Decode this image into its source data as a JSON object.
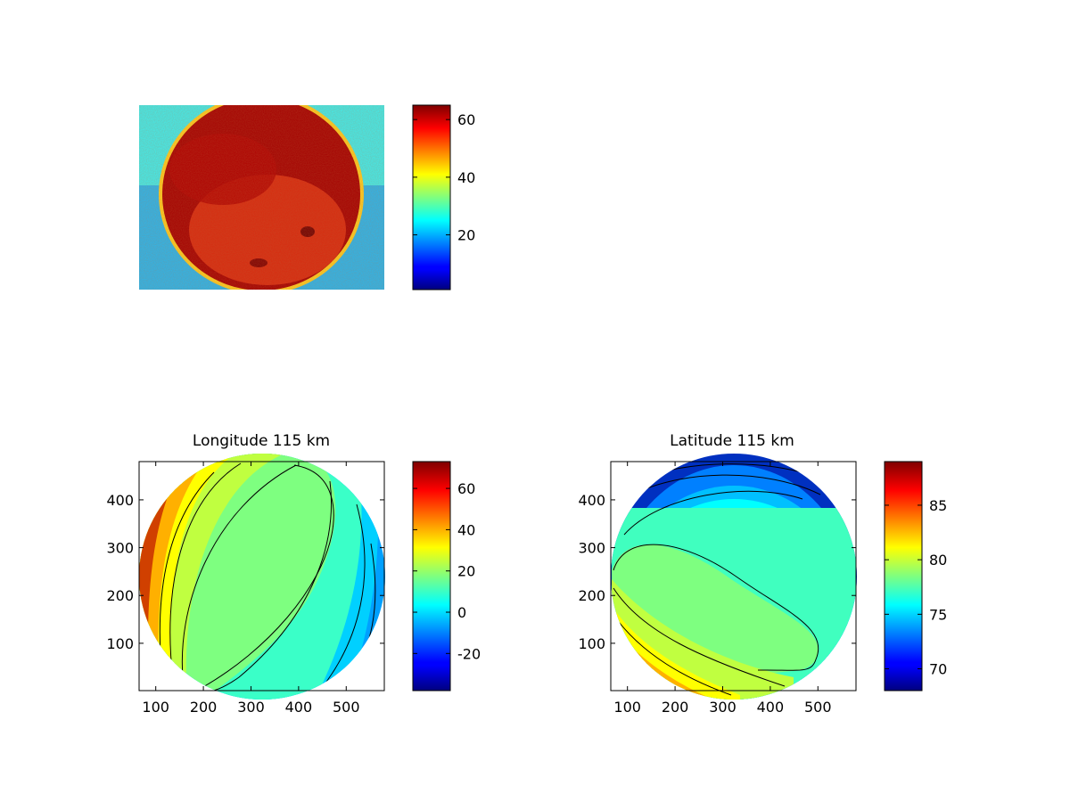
{
  "chart_data": [
    {
      "type": "heatmap",
      "title": "",
      "description_of_content": "",
      "colormap": "jet",
      "colorbar": {
        "ticks": [
          20,
          40,
          60
        ],
        "range": [
          1,
          65
        ]
      }
    },
    {
      "type": "heatmap",
      "title": "Longitude 115 km",
      "colormap": "jet",
      "x_ticks": [
        100,
        200,
        300,
        400,
        500
      ],
      "y_ticks": [
        100,
        200,
        300,
        400
      ],
      "xlim": [
        65,
        580
      ],
      "ylim": [
        1,
        480
      ],
      "colorbar": {
        "ticks": [
          -20,
          0,
          20,
          40,
          60
        ],
        "range": [
          -38,
          73
        ]
      }
    },
    {
      "type": "heatmap",
      "title": "Latitude 115 km",
      "colormap": "jet",
      "x_ticks": [
        100,
        200,
        300,
        400,
        500
      ],
      "y_ticks": [
        100,
        200,
        300,
        400
      ],
      "xlim": [
        65,
        580
      ],
      "ylim": [
        1,
        480
      ],
      "colorbar": {
        "ticks": [
          70,
          75,
          80,
          85
        ],
        "range": [
          68,
          89
        ]
      }
    }
  ]
}
